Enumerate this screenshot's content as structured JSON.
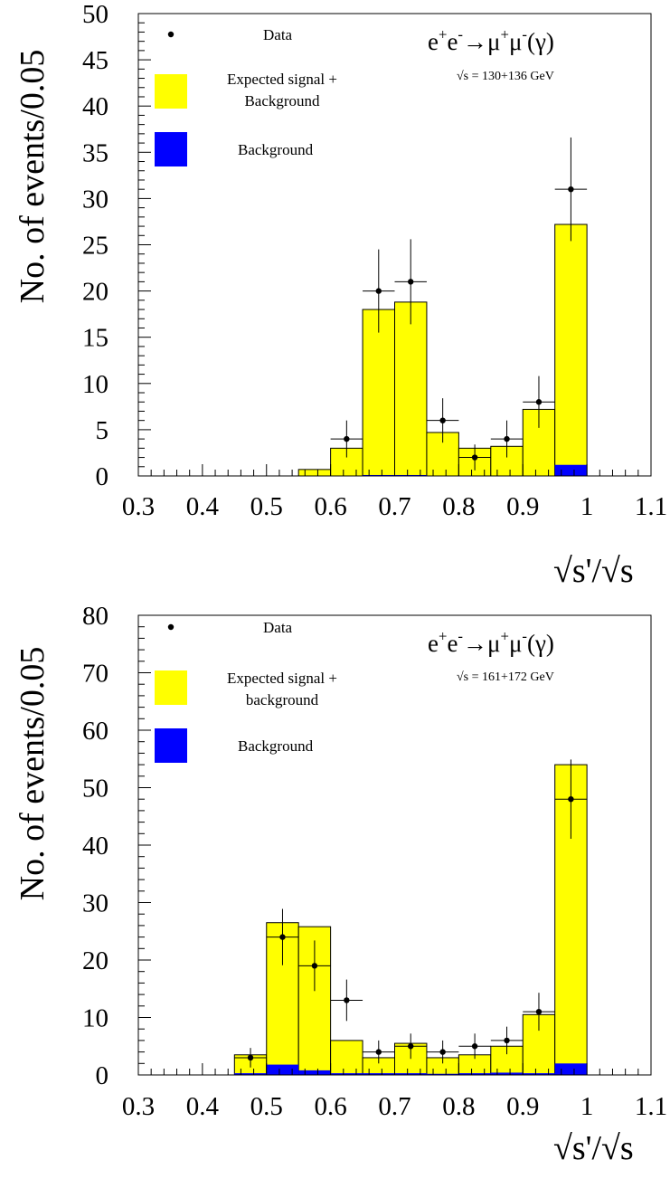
{
  "chart_data": [
    {
      "type": "bar",
      "ylabel": "No. of events/0.05",
      "xlabel": "√s'/√s",
      "xlim": [
        0.3,
        1.1
      ],
      "ylim": [
        0,
        50
      ],
      "x_ticks": [
        "0.3",
        "0.4",
        "0.5",
        "0.6",
        "0.7",
        "0.8",
        "0.9",
        "1",
        "1.1"
      ],
      "y_ticks": [
        "0",
        "5",
        "10",
        "15",
        "20",
        "25",
        "30",
        "35",
        "40",
        "45",
        "50"
      ],
      "bin_edges": [
        0.3,
        0.35,
        0.4,
        0.45,
        0.5,
        0.55,
        0.6,
        0.65,
        0.7,
        0.75,
        0.8,
        0.85,
        0.9,
        0.95,
        1.0
      ],
      "process_label": "e⁺e⁻→μ⁺μ⁻(γ)",
      "energy_label": "√s = 130+136 GeV",
      "grid": false,
      "legend_position": "top-left",
      "series": [
        {
          "name": "Expected signal + Background",
          "kind": "histogram",
          "color": "#ffff00",
          "values": [
            0,
            0,
            0,
            0,
            0,
            0.7,
            3.0,
            18.0,
            18.8,
            4.7,
            3.0,
            3.2,
            7.2,
            27.2
          ]
        },
        {
          "name": "Background",
          "kind": "histogram",
          "color": "#0000ff",
          "values": [
            0,
            0,
            0,
            0,
            0,
            0,
            0,
            0.1,
            0.1,
            0,
            0,
            0,
            0,
            1.2
          ]
        },
        {
          "name": "Data",
          "kind": "points",
          "x": [
            0.625,
            0.675,
            0.725,
            0.775,
            0.825,
            0.875,
            0.925,
            0.975
          ],
          "y": [
            4,
            20,
            21,
            6,
            2,
            4,
            8,
            31
          ],
          "yerr": [
            2.0,
            4.5,
            4.6,
            2.4,
            1.4,
            2.0,
            2.8,
            5.6
          ]
        }
      ]
    },
    {
      "type": "bar",
      "ylabel": "No. of events/0.05",
      "xlabel": "√s'/√s",
      "xlim": [
        0.3,
        1.1
      ],
      "ylim": [
        0,
        80
      ],
      "x_ticks": [
        "0.3",
        "0.4",
        "0.5",
        "0.6",
        "0.7",
        "0.8",
        "0.9",
        "1",
        "1.1"
      ],
      "y_ticks": [
        "0",
        "10",
        "20",
        "30",
        "40",
        "50",
        "60",
        "70",
        "80"
      ],
      "bin_edges": [
        0.3,
        0.35,
        0.4,
        0.45,
        0.5,
        0.55,
        0.6,
        0.65,
        0.7,
        0.75,
        0.8,
        0.85,
        0.9,
        0.95,
        1.0
      ],
      "process_label": "e⁺e⁻→μ⁺μ⁻(γ)",
      "energy_label": "√s = 161+172 GeV",
      "grid": false,
      "legend_position": "top-left",
      "series": [
        {
          "name": "Expected signal + background",
          "kind": "histogram",
          "color": "#ffff00",
          "values": [
            0,
            0,
            0,
            3.5,
            26.5,
            25.8,
            6.0,
            3.0,
            5.5,
            3.0,
            3.5,
            5.0,
            10.5,
            54.0
          ]
        },
        {
          "name": "Background",
          "kind": "histogram",
          "color": "#0000ff",
          "values": [
            0,
            0,
            0,
            0.3,
            1.8,
            0.8,
            0.3,
            0.3,
            0.3,
            0.2,
            0.3,
            0.4,
            0.3,
            2.0
          ]
        },
        {
          "name": "Data",
          "kind": "points",
          "x": [
            0.475,
            0.525,
            0.575,
            0.625,
            0.675,
            0.725,
            0.775,
            0.825,
            0.875,
            0.925,
            0.975
          ],
          "y": [
            3,
            24,
            19,
            13,
            4,
            5,
            4,
            5,
            6,
            11,
            48
          ],
          "yerr": [
            1.7,
            4.9,
            4.4,
            3.6,
            2.0,
            2.2,
            2.0,
            2.2,
            2.4,
            3.3,
            6.9
          ]
        }
      ]
    }
  ]
}
